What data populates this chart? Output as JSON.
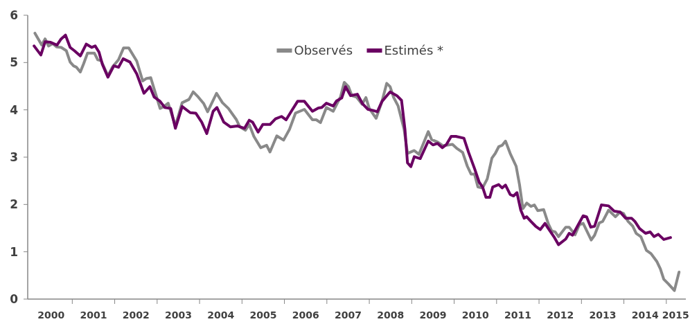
{
  "chart_data": {
    "type": "line",
    "legend": "top",
    "grid": false,
    "marker": "none",
    "line_style": "solid",
    "xlim": [
      1999.95,
      2015.46
    ],
    "ylim": [
      0,
      6
    ],
    "yticks": [
      0,
      1,
      2,
      3,
      4,
      5,
      6
    ],
    "xticks": [
      {
        "value": 2001,
        "label": null
      },
      {
        "value": 2002,
        "label": null
      },
      {
        "value": 2003,
        "label": null
      },
      {
        "value": 2004,
        "label": null
      },
      {
        "value": 2005,
        "label": null
      },
      {
        "value": 2006,
        "label": null
      },
      {
        "value": 2007,
        "label": null
      },
      {
        "value": 2008,
        "label": null
      },
      {
        "value": 2009,
        "label": null
      },
      {
        "value": 2010,
        "label": null
      },
      {
        "value": 2011,
        "label": null
      },
      {
        "value": 2012,
        "label": null
      },
      {
        "value": 2013,
        "label": null
      },
      {
        "value": 2014,
        "label": null
      },
      {
        "value": 2015,
        "label": null
      },
      {
        "value": 2000.5,
        "label": "2000"
      },
      {
        "value": 2001.5,
        "label": "2001"
      },
      {
        "value": 2002.5,
        "label": "2002"
      },
      {
        "value": 2003.5,
        "label": "2003"
      },
      {
        "value": 2004.5,
        "label": "2004"
      },
      {
        "value": 2005.5,
        "label": "2005"
      },
      {
        "value": 2006.5,
        "label": "2006"
      },
      {
        "value": 2007.5,
        "label": "2007"
      },
      {
        "value": 2008.5,
        "label": "2008"
      },
      {
        "value": 2009.5,
        "label": "2009"
      },
      {
        "value": 2010.5,
        "label": "2010"
      },
      {
        "value": 2011.5,
        "label": "2011"
      },
      {
        "value": 2012.5,
        "label": "2012"
      },
      {
        "value": 2013.5,
        "label": "2013"
      },
      {
        "value": 2014.5,
        "label": "2014"
      },
      {
        "value": 2015.22,
        "label": "2015"
      }
    ],
    "series": [
      {
        "name": "Observés",
        "color": "#898989",
        "x": [
          2000.12,
          2000.28,
          2000.36,
          2000.44,
          2000.54,
          2000.63,
          2000.74,
          2000.86,
          2000.95,
          2001.03,
          2001.1,
          2001.19,
          2001.27,
          2001.36,
          2001.52,
          2001.6,
          2001.68,
          2001.84,
          2001.95,
          2002.09,
          2002.21,
          2002.33,
          2002.52,
          2002.66,
          2002.74,
          2002.85,
          2002.93,
          2003.07,
          2003.16,
          2003.26,
          2003.43,
          2003.59,
          2003.75,
          2003.85,
          2003.97,
          2004.1,
          2004.19,
          2004.4,
          2004.54,
          2004.68,
          2004.87,
          2004.95,
          2005.08,
          2005.17,
          2005.28,
          2005.44,
          2005.58,
          2005.66,
          2005.82,
          2005.98,
          2006.12,
          2006.26,
          2006.47,
          2006.66,
          2006.75,
          2006.85,
          2006.99,
          2007.15,
          2007.32,
          2007.41,
          2007.51,
          2007.59,
          2007.7,
          2007.83,
          2007.92,
          2008.0,
          2008.16,
          2008.3,
          2008.41,
          2008.49,
          2008.57,
          2008.68,
          2008.82,
          2008.9,
          2009.06,
          2009.17,
          2009.39,
          2009.47,
          2009.61,
          2009.74,
          2009.96,
          2010.07,
          2010.2,
          2010.31,
          2010.4,
          2010.48,
          2010.56,
          2010.67,
          2010.78,
          2010.89,
          2010.97,
          2011.05,
          2011.13,
          2011.21,
          2011.32,
          2011.46,
          2011.54,
          2011.62,
          2011.71,
          2011.81,
          2011.89,
          2011.97,
          2012.11,
          2012.22,
          2012.3,
          2012.38,
          2012.46,
          2012.63,
          2012.71,
          2012.85,
          2012.95,
          2013.04,
          2013.23,
          2013.31,
          2013.42,
          2013.5,
          2013.64,
          2013.8,
          2013.91,
          2013.99,
          2014.1,
          2014.21,
          2014.29,
          2014.4,
          2014.53,
          2014.64,
          2014.78,
          2014.86,
          2014.94,
          2015.05,
          2015.19,
          2015.3
        ],
        "values": [
          5.62,
          5.37,
          5.5,
          5.35,
          5.4,
          5.33,
          5.32,
          5.25,
          5.01,
          4.93,
          4.9,
          4.8,
          4.98,
          5.2,
          5.2,
          5.06,
          5.04,
          4.72,
          4.91,
          5.06,
          5.31,
          5.31,
          5.03,
          4.61,
          4.66,
          4.68,
          4.44,
          4.03,
          4.07,
          4.14,
          3.66,
          4.15,
          4.22,
          4.38,
          4.27,
          4.13,
          3.96,
          4.35,
          4.15,
          4.03,
          3.79,
          3.64,
          3.57,
          3.69,
          3.44,
          3.2,
          3.25,
          3.11,
          3.45,
          3.36,
          3.59,
          3.93,
          4.01,
          3.79,
          3.79,
          3.73,
          4.05,
          3.97,
          4.27,
          4.58,
          4.49,
          4.3,
          4.27,
          4.12,
          4.26,
          4.03,
          3.82,
          4.18,
          4.56,
          4.49,
          4.27,
          4.08,
          3.59,
          3.08,
          3.14,
          3.06,
          3.54,
          3.37,
          3.32,
          3.24,
          3.27,
          3.18,
          3.1,
          2.81,
          2.64,
          2.64,
          2.37,
          2.35,
          2.54,
          2.98,
          3.08,
          3.22,
          3.25,
          3.34,
          3.08,
          2.81,
          2.42,
          1.91,
          2.03,
          1.96,
          1.99,
          1.87,
          1.89,
          1.59,
          1.44,
          1.42,
          1.32,
          1.52,
          1.52,
          1.36,
          1.57,
          1.6,
          1.25,
          1.35,
          1.61,
          1.64,
          1.88,
          1.74,
          1.84,
          1.81,
          1.64,
          1.54,
          1.39,
          1.32,
          1.03,
          0.96,
          0.79,
          0.64,
          0.42,
          0.32,
          0.18,
          0.57
        ]
      },
      {
        "name": "Estimés *",
        "color": "#6a0062",
        "x": [
          2000.1,
          2000.26,
          2000.36,
          2000.48,
          2000.64,
          2000.73,
          2000.84,
          2000.95,
          2001.05,
          2001.19,
          2001.33,
          2001.46,
          2001.54,
          2001.63,
          2001.71,
          2001.84,
          2001.98,
          2002.09,
          2002.2,
          2002.36,
          2002.52,
          2002.69,
          2002.83,
          2002.93,
          2003.07,
          2003.18,
          2003.32,
          2003.43,
          2003.59,
          2003.78,
          2003.91,
          2004.05,
          2004.17,
          2004.32,
          2004.41,
          2004.57,
          2004.73,
          2004.89,
          2005.06,
          2005.17,
          2005.25,
          2005.38,
          2005.49,
          2005.66,
          2005.79,
          2005.93,
          2006.04,
          2006.17,
          2006.31,
          2006.47,
          2006.66,
          2006.8,
          2006.88,
          2006.99,
          2007.15,
          2007.23,
          2007.35,
          2007.44,
          2007.56,
          2007.72,
          2007.84,
          2007.97,
          2008.08,
          2008.19,
          2008.3,
          2008.49,
          2008.65,
          2008.76,
          2008.84,
          2008.9,
          2008.98,
          2009.06,
          2009.2,
          2009.39,
          2009.5,
          2009.61,
          2009.72,
          2009.82,
          2009.93,
          2010.04,
          2010.23,
          2010.34,
          2010.48,
          2010.59,
          2010.67,
          2010.75,
          2010.84,
          2010.91,
          2011.05,
          2011.13,
          2011.21,
          2011.32,
          2011.4,
          2011.48,
          2011.57,
          2011.65,
          2011.71,
          2011.81,
          2011.92,
          2012.03,
          2012.14,
          2012.22,
          2012.35,
          2012.46,
          2012.63,
          2012.71,
          2012.79,
          2012.93,
          2013.04,
          2013.12,
          2013.22,
          2013.31,
          2013.47,
          2013.64,
          2013.77,
          2013.91,
          2014.04,
          2014.18,
          2014.26,
          2014.37,
          2014.51,
          2014.62,
          2014.71,
          2014.81,
          2014.94,
          2015.1
        ],
        "values": [
          5.35,
          5.16,
          5.44,
          5.43,
          5.37,
          5.49,
          5.58,
          5.32,
          5.25,
          5.14,
          5.39,
          5.32,
          5.35,
          5.22,
          4.96,
          4.69,
          4.93,
          4.9,
          5.08,
          5.01,
          4.76,
          4.35,
          4.49,
          4.27,
          4.18,
          4.05,
          4.03,
          3.61,
          4.07,
          3.94,
          3.93,
          3.74,
          3.5,
          3.97,
          4.05,
          3.74,
          3.64,
          3.66,
          3.61,
          3.78,
          3.74,
          3.53,
          3.69,
          3.69,
          3.81,
          3.86,
          3.79,
          3.98,
          4.18,
          4.18,
          3.97,
          4.04,
          4.05,
          4.14,
          4.08,
          4.19,
          4.25,
          4.49,
          4.3,
          4.33,
          4.13,
          4.01,
          3.99,
          3.96,
          4.18,
          4.38,
          4.3,
          4.2,
          3.59,
          2.88,
          2.8,
          3.01,
          2.97,
          3.34,
          3.26,
          3.29,
          3.2,
          3.27,
          3.44,
          3.44,
          3.4,
          3.1,
          2.76,
          2.47,
          2.37,
          2.15,
          2.15,
          2.37,
          2.42,
          2.35,
          2.41,
          2.21,
          2.18,
          2.25,
          1.88,
          1.71,
          1.74,
          1.64,
          1.54,
          1.47,
          1.6,
          1.49,
          1.32,
          1.15,
          1.27,
          1.39,
          1.35,
          1.58,
          1.76,
          1.74,
          1.52,
          1.54,
          1.99,
          1.97,
          1.86,
          1.84,
          1.71,
          1.71,
          1.64,
          1.49,
          1.39,
          1.42,
          1.32,
          1.37,
          1.26,
          1.3
        ]
      }
    ]
  }
}
